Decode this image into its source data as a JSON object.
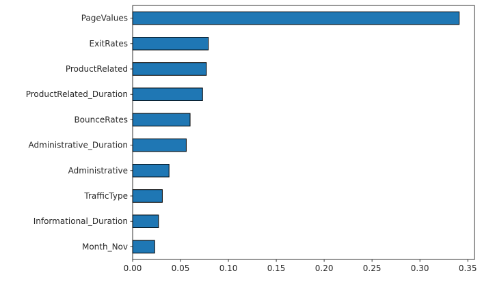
{
  "chart_data": {
    "type": "bar",
    "orientation": "horizontal",
    "categories": [
      "PageValues",
      "ExitRates",
      "ProductRelated",
      "ProductRelated_Duration",
      "BounceRates",
      "Administrative_Duration",
      "Administrative",
      "TrafficType",
      "Informational_Duration",
      "Month_Nov"
    ],
    "values": [
      0.341,
      0.079,
      0.077,
      0.073,
      0.06,
      0.056,
      0.038,
      0.031,
      0.027,
      0.023
    ],
    "xlim": [
      0,
      0.357
    ],
    "x_ticks": [
      0.0,
      0.05,
      0.1,
      0.15,
      0.2,
      0.25,
      0.3,
      0.35
    ],
    "x_tick_labels": [
      "0.00",
      "0.05",
      "0.10",
      "0.15",
      "0.20",
      "0.25",
      "0.30",
      "0.35"
    ],
    "title": "",
    "xlabel": "",
    "ylabel": "",
    "grid": false,
    "bar_color": "#1f77b4",
    "edge_color": "#000000"
  }
}
